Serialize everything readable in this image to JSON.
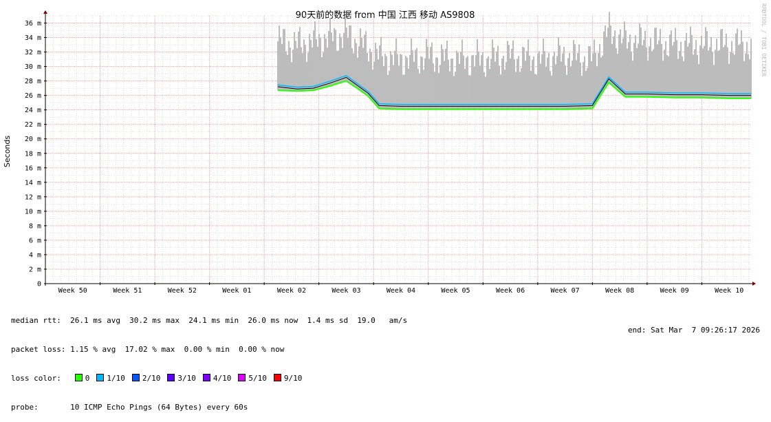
{
  "chart_data": {
    "type": "line",
    "title": "90天前的数据 from 中国 江西 移动 AS9808",
    "ylabel": "Seconds",
    "ylim": [
      0,
      37
    ],
    "y_ticks": [
      "0",
      "2 m",
      "4 m",
      "6 m",
      "8 m",
      "10 m",
      "12 m",
      "14 m",
      "16 m",
      "18 m",
      "20 m",
      "22 m",
      "24 m",
      "26 m",
      "28 m",
      "30 m",
      "32 m",
      "34 m",
      "36 m"
    ],
    "y_tick_values": [
      0,
      2,
      4,
      6,
      8,
      10,
      12,
      14,
      16,
      18,
      20,
      22,
      24,
      26,
      28,
      30,
      32,
      34,
      36
    ],
    "x_ticks": [
      "Week 50",
      "Week 51",
      "Week 52",
      "Week 01",
      "Week 02",
      "Week 03",
      "Week 04",
      "Week 05",
      "Week 06",
      "Week 07",
      "Week 08",
      "Week 09",
      "Week 10"
    ],
    "x_range_weeks": [
      0,
      12.9
    ],
    "grid": true,
    "series": [
      {
        "name": "median rtt",
        "x_weeks": [
          4.25,
          4.6,
          4.9,
          5.2,
          5.5,
          5.7,
          5.9,
          6.1,
          6.5,
          7.0,
          7.5,
          8.0,
          8.5,
          9.0,
          9.5,
          10.0,
          10.3,
          10.6,
          11.0,
          11.5,
          12.0,
          12.5,
          12.9
        ],
        "values_ms": [
          27.2,
          26.9,
          27.0,
          27.7,
          28.5,
          27.4,
          26.3,
          24.6,
          24.5,
          24.5,
          24.5,
          24.5,
          24.5,
          24.5,
          24.5,
          24.6,
          28.3,
          26.2,
          26.2,
          26.1,
          26.1,
          26.0,
          26.0
        ]
      },
      {
        "name": "rtt max",
        "x_weeks": [
          4.25,
          4.6,
          4.9,
          5.2,
          5.5,
          5.7,
          5.9,
          6.1,
          6.5,
          7.0,
          7.5,
          8.0,
          8.5,
          9.0,
          9.5,
          10.0,
          10.3,
          10.6,
          11.0,
          11.5,
          12.0,
          12.5,
          12.9
        ],
        "values_ms": [
          33.5,
          33.0,
          33.5,
          34.0,
          34.5,
          33.5,
          32.5,
          31.5,
          31.0,
          31.5,
          31.0,
          31.0,
          31.5,
          31.0,
          31.5,
          31.0,
          35.0,
          33.5,
          33.5,
          33.0,
          33.0,
          33.0,
          33.0
        ]
      },
      {
        "name": "rtt min",
        "x_weeks": [
          4.25,
          4.6,
          4.9,
          5.2,
          5.5,
          5.7,
          5.9,
          6.1,
          6.5,
          7.0,
          7.5,
          8.0,
          8.5,
          9.0,
          9.5,
          10.0,
          10.3,
          10.6,
          11.0,
          11.5,
          12.0,
          12.5,
          12.9
        ],
        "values_ms": [
          26.7,
          26.6,
          26.7,
          27.3,
          28.0,
          27.0,
          25.9,
          24.2,
          24.1,
          24.1,
          24.1,
          24.1,
          24.1,
          24.1,
          24.1,
          24.2,
          27.8,
          25.8,
          25.8,
          25.7,
          25.7,
          25.6,
          25.6
        ]
      }
    ]
  },
  "stats": {
    "median_rtt": "median rtt:  26.1 ms avg  30.2 ms max  24.1 ms min  26.0 ms now  1.4 ms sd  19.0   am/s",
    "packet_loss": "packet loss: 1.15 % avg  17.02 % max  0.00 % min  0.00 % now",
    "loss_color_label": "loss color:",
    "probe": "probe:       10 ICMP Echo Pings (64 Bytes) every 60s",
    "end": "end: Sat Mar  7 09:26:17 2026"
  },
  "legend": [
    {
      "label": "0",
      "color": "#26ff00"
    },
    {
      "label": "1/10",
      "color": "#00b8ff"
    },
    {
      "label": "2/10",
      "color": "#0059ff"
    },
    {
      "label": "3/10",
      "color": "#5e00ff"
    },
    {
      "label": "4/10",
      "color": "#7e00ff"
    },
    {
      "label": "5/10",
      "color": "#dd00ff"
    },
    {
      "label": "9/10",
      "color": "#ff0000"
    }
  ],
  "credit": "RRDTOOL / TOBI OETIKER",
  "colors": {
    "grid_minor": "#e0e0e0",
    "grid_major": "#f0a0a0",
    "axis": "#000000",
    "arrow": "#800000",
    "smoke": "#bcbcbc"
  }
}
